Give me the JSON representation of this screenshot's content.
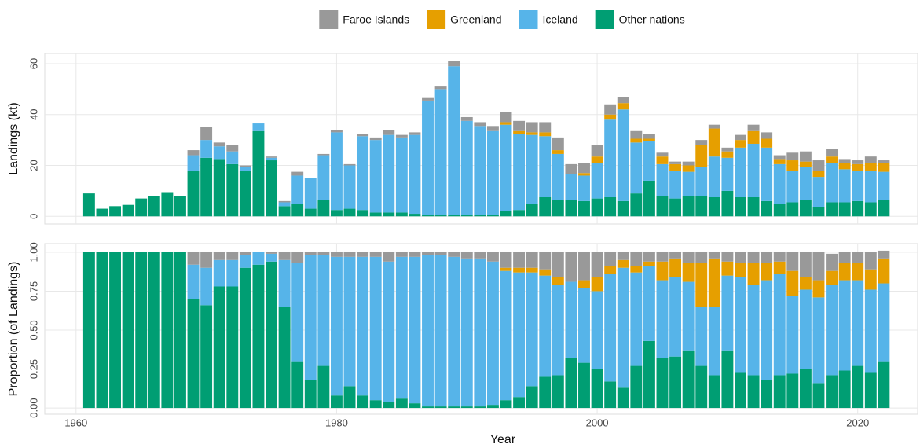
{
  "chart_data": [
    {
      "type": "stacked-bar",
      "y_label": "Landings (kt)",
      "x": [
        1961,
        1962,
        1963,
        1964,
        1965,
        1966,
        1967,
        1968,
        1969,
        1970,
        1971,
        1972,
        1973,
        1974,
        1975,
        1976,
        1977,
        1978,
        1979,
        1980,
        1981,
        1982,
        1983,
        1984,
        1985,
        1986,
        1987,
        1988,
        1989,
        1990,
        1991,
        1992,
        1993,
        1994,
        1995,
        1996,
        1997,
        1998,
        1999,
        2000,
        2001,
        2002,
        2003,
        2004,
        2005,
        2006,
        2007,
        2008,
        2009,
        2010,
        2011,
        2012,
        2013,
        2014,
        2015,
        2016,
        2017,
        2018,
        2019,
        2020,
        2021,
        2022
      ],
      "xlim": [
        1957.6,
        2024.6
      ],
      "xticks": [
        1960,
        1980,
        2000,
        2020
      ],
      "ylim": [
        -3,
        64
      ],
      "yticks": [
        0,
        20,
        40,
        60
      ],
      "grid": true,
      "series": [
        {
          "name": "Faroe Islands",
          "color": "#999999",
          "values": [
            0,
            0,
            0,
            0,
            0,
            0,
            0,
            0,
            2,
            5,
            1.5,
            2.5,
            0.5,
            0,
            0.5,
            0.5,
            1.5,
            0,
            0.5,
            1,
            0.5,
            1,
            1,
            2,
            1,
            1,
            1,
            1,
            2,
            1.5,
            1.5,
            2,
            4,
            4,
            4,
            4,
            5,
            4,
            4,
            4.5,
            4,
            2.5,
            3,
            2,
            1.5,
            1,
            1.5,
            2,
            1.5,
            1.5,
            2,
            2.5,
            2.5,
            1.5,
            3,
            4,
            4,
            3,
            1.5,
            1.5,
            2.5,
            1
          ]
        },
        {
          "name": "Greenland",
          "color": "#E69F00",
          "values": [
            0,
            0,
            0,
            0,
            0,
            0,
            0,
            0,
            0,
            0,
            0,
            0,
            0,
            0,
            0,
            0,
            0,
            0,
            0,
            0,
            0,
            0,
            0,
            0,
            0,
            0,
            0,
            0,
            0,
            0,
            0,
            0,
            1,
            1,
            1,
            1.5,
            1.5,
            0,
            1,
            2.5,
            2,
            2.5,
            1.5,
            1,
            3,
            2.5,
            2.5,
            8.5,
            11,
            2.5,
            3,
            5,
            3.5,
            2,
            4,
            2,
            2.5,
            2.5,
            2.5,
            2.5,
            3,
            3.5
          ]
        },
        {
          "name": "Iceland",
          "color": "#56B4E9",
          "values": [
            0,
            0,
            0,
            0,
            0,
            0,
            0,
            0,
            6,
            7,
            5,
            5,
            1.5,
            3,
            1,
            1.5,
            11,
            12,
            17.5,
            30.5,
            17,
            29,
            28.5,
            30.5,
            29.5,
            31,
            45,
            49.5,
            58.5,
            37,
            35,
            33,
            34,
            30,
            27,
            24,
            18,
            10,
            10,
            14,
            30.5,
            36,
            20,
            15.5,
            12.5,
            11,
            9.5,
            11.5,
            16,
            13,
            19.5,
            21,
            21,
            15.5,
            12.5,
            13,
            12,
            15.5,
            13,
            12,
            12.5,
            11
          ]
        },
        {
          "name": "Other nations",
          "color": "#009E73",
          "values": [
            9,
            3,
            4,
            4.5,
            7,
            8,
            9.5,
            8,
            18,
            23,
            22.5,
            20.5,
            18,
            33.5,
            22,
            4,
            5,
            3,
            6.5,
            2.5,
            3,
            2.5,
            1.5,
            1.5,
            1.5,
            1,
            0.5,
            0.5,
            0.5,
            0.5,
            0.5,
            0.5,
            2,
            2.5,
            5,
            7.5,
            6.5,
            6.5,
            6,
            7,
            7.5,
            6,
            9,
            14,
            8,
            7,
            8,
            8,
            7.5,
            10,
            7.5,
            7.5,
            6,
            5,
            5.5,
            6.5,
            3.5,
            5.5,
            5.5,
            6,
            5.5,
            6.5
          ]
        }
      ]
    },
    {
      "type": "stacked-bar",
      "y_label": "Proportion (of Landings)",
      "x_label": "Year",
      "x": [
        1961,
        1962,
        1963,
        1964,
        1965,
        1966,
        1967,
        1968,
        1969,
        1970,
        1971,
        1972,
        1973,
        1974,
        1975,
        1976,
        1977,
        1978,
        1979,
        1980,
        1981,
        1982,
        1983,
        1984,
        1985,
        1986,
        1987,
        1988,
        1989,
        1990,
        1991,
        1992,
        1993,
        1994,
        1995,
        1996,
        1997,
        1998,
        1999,
        2000,
        2001,
        2002,
        2003,
        2004,
        2005,
        2006,
        2007,
        2008,
        2009,
        2010,
        2011,
        2012,
        2013,
        2014,
        2015,
        2016,
        2017,
        2018,
        2019,
        2020,
        2021,
        2022
      ],
      "xlim": [
        1957.6,
        2024.6
      ],
      "xticks": [
        1960,
        1980,
        2000,
        2020
      ],
      "ylim": [
        -0.04,
        1.055
      ],
      "yticks": [
        {
          "value": 0,
          "label": "0.00"
        },
        {
          "value": 0.25,
          "label": "0.25"
        },
        {
          "value": 0.5,
          "label": "0.50"
        },
        {
          "value": 0.75,
          "label": "0.75"
        },
        {
          "value": 1,
          "label": "1.00"
        }
      ],
      "grid": true,
      "series": [
        {
          "name": "Faroe Islands",
          "color": "#999999",
          "values": [
            0,
            0,
            0,
            0,
            0,
            0,
            0,
            0,
            0.08,
            0.1,
            0.05,
            0.05,
            0.02,
            0,
            0.01,
            0.05,
            0.07,
            0.02,
            0.02,
            0.03,
            0.03,
            0.03,
            0.03,
            0.06,
            0.03,
            0.03,
            0.02,
            0.02,
            0.03,
            0.04,
            0.04,
            0.06,
            0.1,
            0.1,
            0.1,
            0.11,
            0.16,
            0.19,
            0.18,
            0.16,
            0.09,
            0.05,
            0.09,
            0.06,
            0.06,
            0.04,
            0.07,
            0.07,
            0.04,
            0.06,
            0.07,
            0.07,
            0.07,
            0.06,
            0.12,
            0.16,
            0.18,
            0.11,
            0.07,
            0.07,
            0.11,
            0.05
          ]
        },
        {
          "name": "Greenland",
          "color": "#E69F00",
          "values": [
            0,
            0,
            0,
            0,
            0,
            0,
            0,
            0,
            0,
            0,
            0,
            0,
            0,
            0,
            0,
            0,
            0,
            0,
            0,
            0,
            0,
            0,
            0,
            0,
            0,
            0,
            0,
            0,
            0,
            0,
            0,
            0,
            0.02,
            0.03,
            0.03,
            0.04,
            0.05,
            0,
            0.05,
            0.09,
            0.05,
            0.05,
            0.04,
            0.03,
            0.12,
            0.12,
            0.12,
            0.28,
            0.31,
            0.09,
            0.09,
            0.14,
            0.11,
            0.08,
            0.16,
            0.08,
            0.11,
            0.09,
            0.11,
            0.11,
            0.13,
            0.16
          ]
        },
        {
          "name": "Iceland",
          "color": "#56B4E9",
          "values": [
            0,
            0,
            0,
            0,
            0,
            0,
            0,
            0,
            0.22,
            0.24,
            0.17,
            0.17,
            0.08,
            0.08,
            0.05,
            0.3,
            0.63,
            0.8,
            0.71,
            0.89,
            0.83,
            0.89,
            0.92,
            0.9,
            0.91,
            0.94,
            0.97,
            0.97,
            0.96,
            0.95,
            0.95,
            0.92,
            0.83,
            0.8,
            0.73,
            0.65,
            0.58,
            0.49,
            0.48,
            0.5,
            0.69,
            0.77,
            0.6,
            0.48,
            0.5,
            0.51,
            0.44,
            0.38,
            0.44,
            0.48,
            0.61,
            0.58,
            0.64,
            0.65,
            0.5,
            0.51,
            0.55,
            0.58,
            0.58,
            0.55,
            0.53,
            0.5
          ]
        },
        {
          "name": "Other nations",
          "color": "#009E73",
          "values": [
            1,
            1,
            1,
            1,
            1,
            1,
            1,
            1,
            0.7,
            0.66,
            0.78,
            0.78,
            0.9,
            0.92,
            0.94,
            0.65,
            0.3,
            0.18,
            0.27,
            0.08,
            0.14,
            0.08,
            0.05,
            0.04,
            0.06,
            0.03,
            0.01,
            0.01,
            0.01,
            0.01,
            0.01,
            0.02,
            0.05,
            0.07,
            0.14,
            0.2,
            0.21,
            0.32,
            0.29,
            0.25,
            0.17,
            0.13,
            0.27,
            0.43,
            0.32,
            0.33,
            0.37,
            0.27,
            0.21,
            0.37,
            0.23,
            0.21,
            0.18,
            0.21,
            0.22,
            0.25,
            0.16,
            0.21,
            0.24,
            0.27,
            0.23,
            0.3
          ]
        }
      ]
    }
  ]
}
